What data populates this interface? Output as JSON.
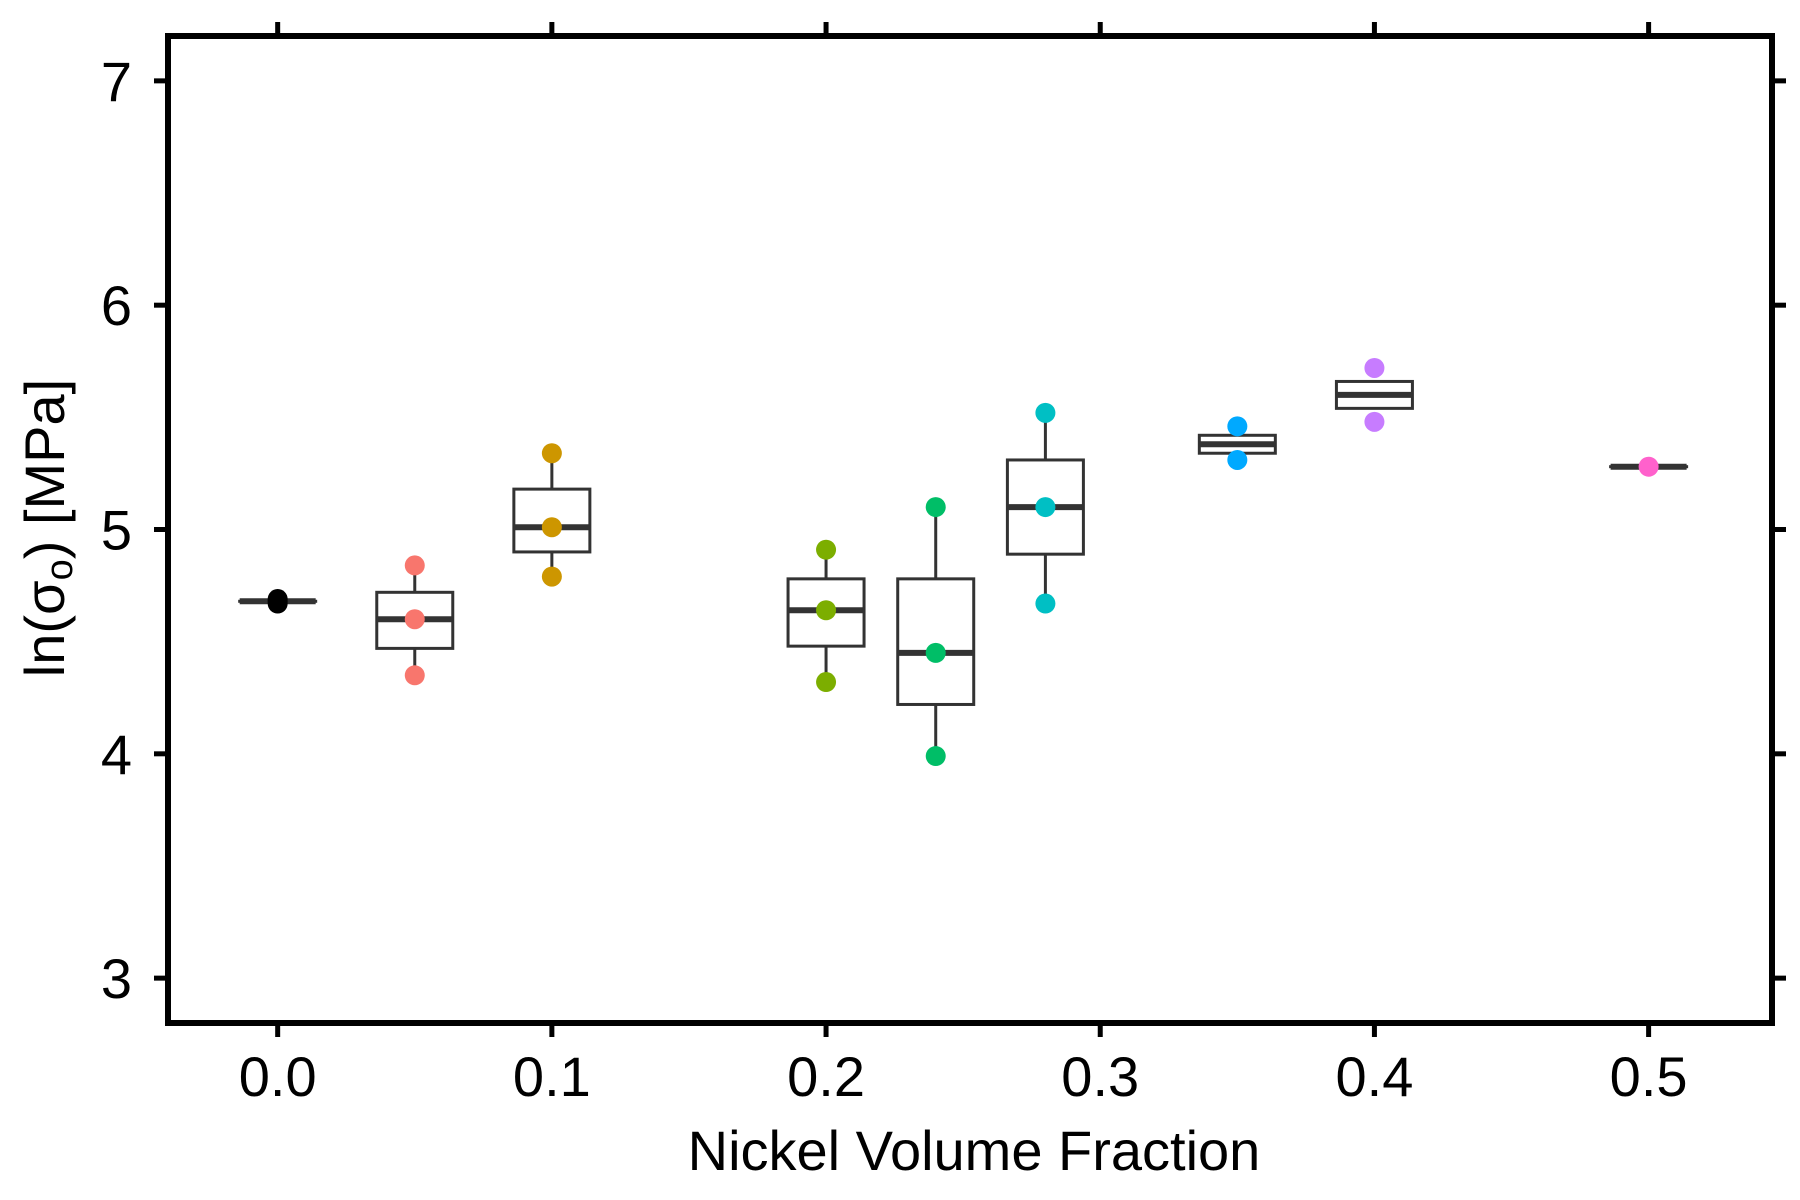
{
  "chart_data": {
    "type": "box",
    "xlabel": "Nickel Volume Fraction",
    "ylabel": {
      "prefix": "ln(σ",
      "subscript": "o",
      "suffix": ") [MPa]"
    },
    "xlim": [
      -0.04,
      0.545
    ],
    "ylim": [
      2.8,
      7.2
    ],
    "x_ticks": [
      0.0,
      0.1,
      0.2,
      0.3,
      0.4,
      0.5
    ],
    "x_tick_labels": [
      "0.0",
      "0.1",
      "0.2",
      "0.3",
      "0.4",
      "0.5"
    ],
    "y_ticks": [
      3,
      4,
      5,
      6,
      7
    ],
    "y_tick_labels": [
      "3",
      "4",
      "5",
      "6",
      "7"
    ],
    "grid": false,
    "legend": "none",
    "groups": [
      {
        "x": 0.0,
        "color": "#000000",
        "points": [
          4.68,
          4.69,
          4.67
        ],
        "box": {
          "lower_whisker": 4.68,
          "q1": 4.68,
          "median": 4.68,
          "q3": 4.68,
          "upper_whisker": 4.68
        }
      },
      {
        "x": 0.05,
        "color": "#F8766D",
        "points": [
          4.84,
          4.6,
          4.35
        ],
        "box": {
          "lower_whisker": 4.35,
          "q1": 4.47,
          "median": 4.6,
          "q3": 4.72,
          "upper_whisker": 4.84
        }
      },
      {
        "x": 0.1,
        "color": "#CD9600",
        "points": [
          5.34,
          5.01,
          4.79
        ],
        "box": {
          "lower_whisker": 4.79,
          "q1": 4.9,
          "median": 5.01,
          "q3": 5.18,
          "upper_whisker": 5.34
        }
      },
      {
        "x": 0.2,
        "color": "#7CAE00",
        "points": [
          4.91,
          4.64,
          4.32
        ],
        "box": {
          "lower_whisker": 4.32,
          "q1": 4.48,
          "median": 4.64,
          "q3": 4.78,
          "upper_whisker": 4.91
        }
      },
      {
        "x": 0.24,
        "color": "#00BE67",
        "points": [
          5.1,
          4.45,
          3.99
        ],
        "box": {
          "lower_whisker": 3.99,
          "q1": 4.22,
          "median": 4.45,
          "q3": 4.78,
          "upper_whisker": 5.1
        }
      },
      {
        "x": 0.28,
        "color": "#00BFC4",
        "points": [
          5.52,
          5.1,
          4.67
        ],
        "box": {
          "lower_whisker": 4.67,
          "q1": 4.89,
          "median": 5.1,
          "q3": 5.31,
          "upper_whisker": 5.52
        }
      },
      {
        "x": 0.35,
        "color": "#00A9FF",
        "points": [
          5.46,
          5.31
        ],
        "box": {
          "lower_whisker": 5.34,
          "q1": 5.34,
          "median": 5.38,
          "q3": 5.42,
          "upper_whisker": 5.42
        }
      },
      {
        "x": 0.4,
        "color": "#C77CFF",
        "points": [
          5.72,
          5.48
        ],
        "box": {
          "lower_whisker": 5.54,
          "q1": 5.54,
          "median": 5.6,
          "q3": 5.66,
          "upper_whisker": 5.66
        }
      },
      {
        "x": 0.5,
        "color": "#FF61CC",
        "points": [
          5.28
        ],
        "box": {
          "lower_whisker": 5.28,
          "q1": 5.28,
          "median": 5.28,
          "q3": 5.28,
          "upper_whisker": 5.28
        }
      }
    ]
  }
}
